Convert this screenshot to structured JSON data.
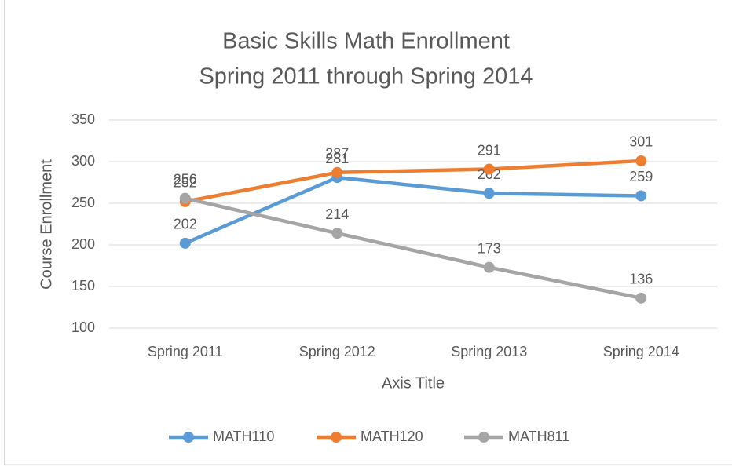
{
  "chart_data": {
    "type": "line",
    "title": "Basic Skills Math Enrollment",
    "subtitle": "Spring 2011 through Spring 2014",
    "x_label": "Axis Title",
    "y_label": "Course Enrollment",
    "categories": [
      "Spring 2011",
      "Spring 2012",
      "Spring 2013",
      "Spring 2014"
    ],
    "series": [
      {
        "name": "MATH110",
        "color": "#5b9bd5",
        "values": [
          202,
          281,
          262,
          259
        ]
      },
      {
        "name": "MATH120",
        "color": "#ed7d31",
        "values": [
          252,
          287,
          291,
          301
        ]
      },
      {
        "name": "MATH811",
        "color": "#a5a5a5",
        "values": [
          256,
          214,
          173,
          136
        ]
      }
    ],
    "ylim": [
      100,
      350
    ],
    "yticks": [
      100,
      150,
      200,
      250,
      300,
      350
    ],
    "grid": true,
    "legend": "bottom"
  }
}
